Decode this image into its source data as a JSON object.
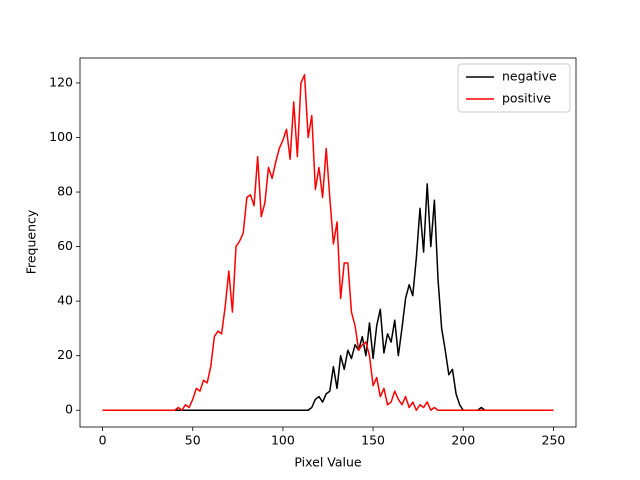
{
  "chart_data": {
    "type": "line",
    "xlabel": "Pixel Value",
    "ylabel": "Frequency",
    "x": [
      0,
      2,
      4,
      6,
      8,
      10,
      12,
      14,
      16,
      18,
      20,
      22,
      24,
      26,
      28,
      30,
      32,
      34,
      36,
      38,
      40,
      42,
      44,
      46,
      48,
      50,
      52,
      54,
      56,
      58,
      60,
      62,
      64,
      66,
      68,
      70,
      72,
      74,
      76,
      78,
      80,
      82,
      84,
      86,
      88,
      90,
      92,
      94,
      96,
      98,
      100,
      102,
      104,
      106,
      108,
      110,
      112,
      114,
      116,
      118,
      120,
      122,
      124,
      126,
      128,
      130,
      132,
      134,
      136,
      138,
      140,
      142,
      144,
      146,
      148,
      150,
      152,
      154,
      156,
      158,
      160,
      162,
      164,
      166,
      168,
      170,
      172,
      174,
      176,
      178,
      180,
      182,
      184,
      186,
      188,
      190,
      192,
      194,
      196,
      198,
      200,
      202,
      204,
      206,
      208,
      210,
      212,
      214,
      216,
      218,
      220,
      222,
      224,
      226,
      228,
      230,
      232,
      234,
      236,
      238,
      240,
      242,
      244,
      246,
      248,
      250
    ],
    "series": [
      {
        "name": "negative",
        "color": "#000000",
        "values": [
          0,
          0,
          0,
          0,
          0,
          0,
          0,
          0,
          0,
          0,
          0,
          0,
          0,
          0,
          0,
          0,
          0,
          0,
          0,
          0,
          0,
          0,
          0,
          0,
          0,
          0,
          0,
          0,
          0,
          0,
          0,
          0,
          0,
          0,
          0,
          0,
          0,
          0,
          0,
          0,
          0,
          0,
          0,
          0,
          0,
          0,
          0,
          0,
          0,
          0,
          0,
          0,
          0,
          0,
          0,
          0,
          0,
          0,
          1,
          4,
          5,
          3,
          6,
          7,
          16,
          8,
          20,
          15,
          22,
          19,
          24,
          22,
          27,
          20,
          32,
          19,
          31,
          37,
          21,
          28,
          25,
          33,
          20,
          30,
          41,
          46,
          42,
          56,
          74,
          58,
          83,
          60,
          77,
          48,
          30,
          22,
          13,
          15,
          6,
          2,
          0,
          0,
          0,
          0,
          0,
          1,
          0,
          0,
          0,
          0,
          0,
          0,
          0,
          0,
          0,
          0,
          0,
          0,
          0,
          0,
          0,
          0,
          0,
          0,
          0,
          0
        ]
      },
      {
        "name": "positive",
        "color": "#ff0000",
        "values": [
          0,
          0,
          0,
          0,
          0,
          0,
          0,
          0,
          0,
          0,
          0,
          0,
          0,
          0,
          0,
          0,
          0,
          0,
          0,
          0,
          0,
          1,
          0,
          2,
          1,
          4,
          8,
          7,
          11,
          10,
          16,
          27,
          29,
          28,
          38,
          51,
          36,
          60,
          62,
          65,
          78,
          79,
          75,
          93,
          71,
          76,
          89,
          85,
          91,
          96,
          99,
          103,
          92,
          113,
          93,
          120,
          123,
          100,
          108,
          81,
          89,
          78,
          96,
          78,
          61,
          69,
          41,
          54,
          54,
          36,
          31,
          22,
          24,
          25,
          20,
          9,
          12,
          5,
          8,
          2,
          3,
          7,
          4,
          2,
          5,
          1,
          3,
          0,
          2,
          1,
          3,
          0,
          1,
          0,
          0,
          0,
          0,
          0,
          0,
          0,
          0,
          0,
          0,
          0,
          0,
          0,
          0,
          0,
          0,
          0,
          0,
          0,
          0,
          0,
          0,
          0,
          0,
          0,
          0,
          0,
          0,
          0,
          0,
          0,
          0,
          0
        ]
      }
    ],
    "xlim": [
      -12.5,
      262.5
    ],
    "xticks": [
      0,
      50,
      100,
      150,
      200,
      250
    ],
    "ylim": [
      -6.15,
      129.15
    ],
    "yticks": [
      0,
      20,
      40,
      60,
      80,
      100,
      120
    ],
    "legend": "upper right"
  }
}
